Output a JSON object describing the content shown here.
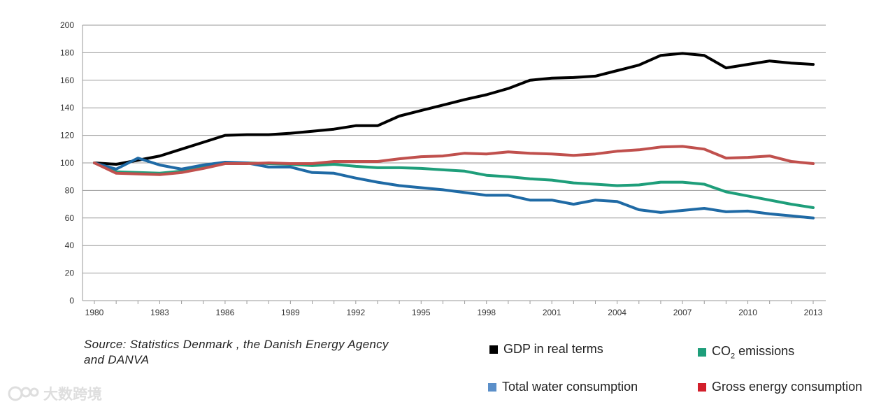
{
  "chart_data": {
    "type": "line",
    "title": "",
    "xlabel": "",
    "ylabel": "",
    "ylim": [
      0,
      200
    ],
    "xlim": [
      1980,
      2013
    ],
    "yticks": [
      0,
      20,
      40,
      60,
      80,
      100,
      120,
      140,
      160,
      180,
      200
    ],
    "xticks": [
      1980,
      1983,
      1986,
      1989,
      1992,
      1995,
      1998,
      2001,
      2004,
      2007,
      2010,
      2013
    ],
    "grid": true,
    "x": [
      1980,
      1981,
      1982,
      1983,
      1984,
      1985,
      1986,
      1987,
      1988,
      1989,
      1990,
      1991,
      1992,
      1993,
      1994,
      1995,
      1996,
      1997,
      1998,
      1999,
      2000,
      2001,
      2002,
      2003,
      2004,
      2005,
      2006,
      2007,
      2008,
      2009,
      2010,
      2011,
      2012,
      2013
    ],
    "series": [
      {
        "name": "GDP in real terms",
        "color": "#000000",
        "values": [
          100,
          99,
          102,
          105,
          110,
          115,
          120,
          120.5,
          120.5,
          121.5,
          123,
          124.5,
          127,
          127,
          134,
          138,
          142,
          146,
          149.5,
          154,
          160,
          161.5,
          162,
          163,
          167,
          171,
          178,
          179.5,
          178,
          169,
          171.5,
          174,
          172.5,
          171.5
        ]
      },
      {
        "name": "CO2 emissions",
        "color": "#1e9e7a",
        "values": [
          100,
          93.5,
          93,
          92.5,
          94,
          97,
          100,
          100,
          99.5,
          99,
          98,
          99,
          97.5,
          96.5,
          96.5,
          96,
          95,
          94,
          91,
          90,
          88.5,
          87.5,
          85.5,
          84.5,
          83.5,
          84,
          86,
          86,
          84.5,
          79,
          76,
          73,
          70,
          67.5
        ]
      },
      {
        "name": "Total water consumption",
        "color": "#1f6aa5",
        "values": [
          100,
          95.5,
          103.5,
          98.5,
          95.5,
          98.5,
          100.5,
          100,
          97,
          97,
          93,
          92.5,
          89,
          86,
          83.5,
          82,
          80.5,
          78.5,
          76.5,
          76.5,
          73,
          73,
          70,
          73,
          72,
          66,
          64,
          65.5,
          67,
          64.5,
          65,
          63,
          61.5,
          60
        ]
      },
      {
        "name": "Gross energy consumption",
        "color": "#c0504d",
        "values": [
          100,
          92.5,
          92,
          91.5,
          93,
          96,
          99.5,
          99.5,
          100,
          99.5,
          99.5,
          101,
          101,
          101,
          103,
          104.5,
          105,
          107,
          106.5,
          108,
          107,
          106.5,
          105.5,
          106.5,
          108.5,
          109.5,
          111.5,
          112,
          110,
          103.5,
          104,
          105,
          101,
          99.5
        ]
      }
    ]
  },
  "source_text": "Source:  Statistics Denmark , the Danish Energy Agency and DANVA",
  "legend": {
    "gdp": "GDP in real terms",
    "co2_prefix": "CO",
    "co2_sub": "2",
    "co2_suffix": " emissions",
    "water": "Total water consumption",
    "energy": "Gross energy consumption"
  },
  "colors": {
    "gdp": "#000000",
    "co2": "#1e9e7a",
    "water": "#5b8fc9",
    "energy": "#d21f2b",
    "grid": "#9a9a9a"
  },
  "watermark_text": "大数跨境",
  "watermark_icon": "logo-icon"
}
